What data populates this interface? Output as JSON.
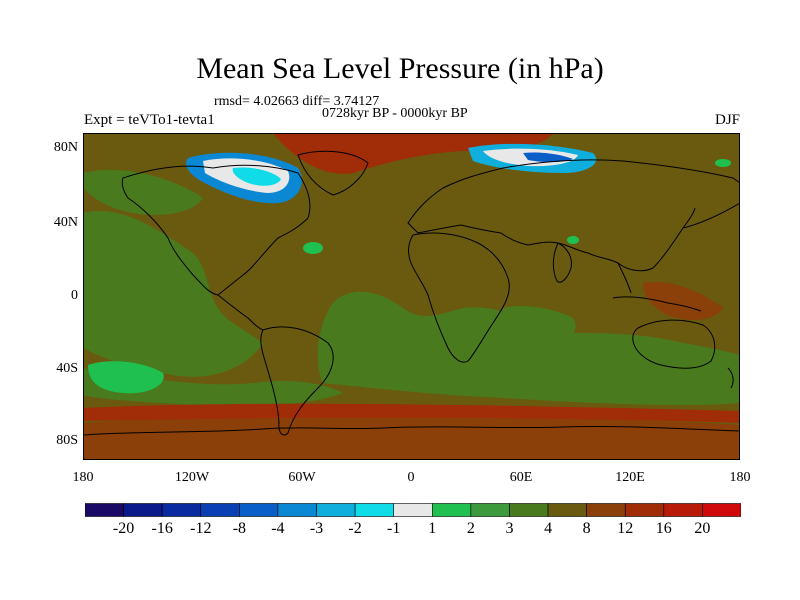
{
  "title": "Mean Sea Level Pressure (in hPa)",
  "stats": "rmsd= 4.02663 diff= 3.74127",
  "period": "0728kyr BP - 0000kyr BP",
  "experiment": "Expt = teVTo1-tevta1",
  "season": "DJF",
  "lat_ticks": [
    "80N",
    "40N",
    "0",
    "40S",
    "80S"
  ],
  "lon_ticks": [
    "180",
    "120W",
    "60W",
    "0",
    "60E",
    "120E",
    "180"
  ],
  "colorbar": {
    "labels": [
      "-20",
      "-16",
      "-12",
      "-8",
      "-4",
      "-3",
      "-2",
      "-1",
      "1",
      "2",
      "3",
      "4",
      "8",
      "12",
      "16",
      "20"
    ],
    "colors": [
      "#1a0a66",
      "#0a1a8a",
      "#0a2aa0",
      "#0a40b4",
      "#0a5ec8",
      "#0a88d4",
      "#10aedc",
      "#10dce8",
      "#e8e8e8",
      "#20c050",
      "#3c9a3c",
      "#4a7a1e",
      "#6a5a10",
      "#8a4008",
      "#a02c08",
      "#b81c08",
      "#d00a0a"
    ]
  },
  "colors": {
    "background_field": "#6a5a10",
    "ocean_green": "#4a7a1e",
    "high_anomaly": "#a02c08"
  }
}
